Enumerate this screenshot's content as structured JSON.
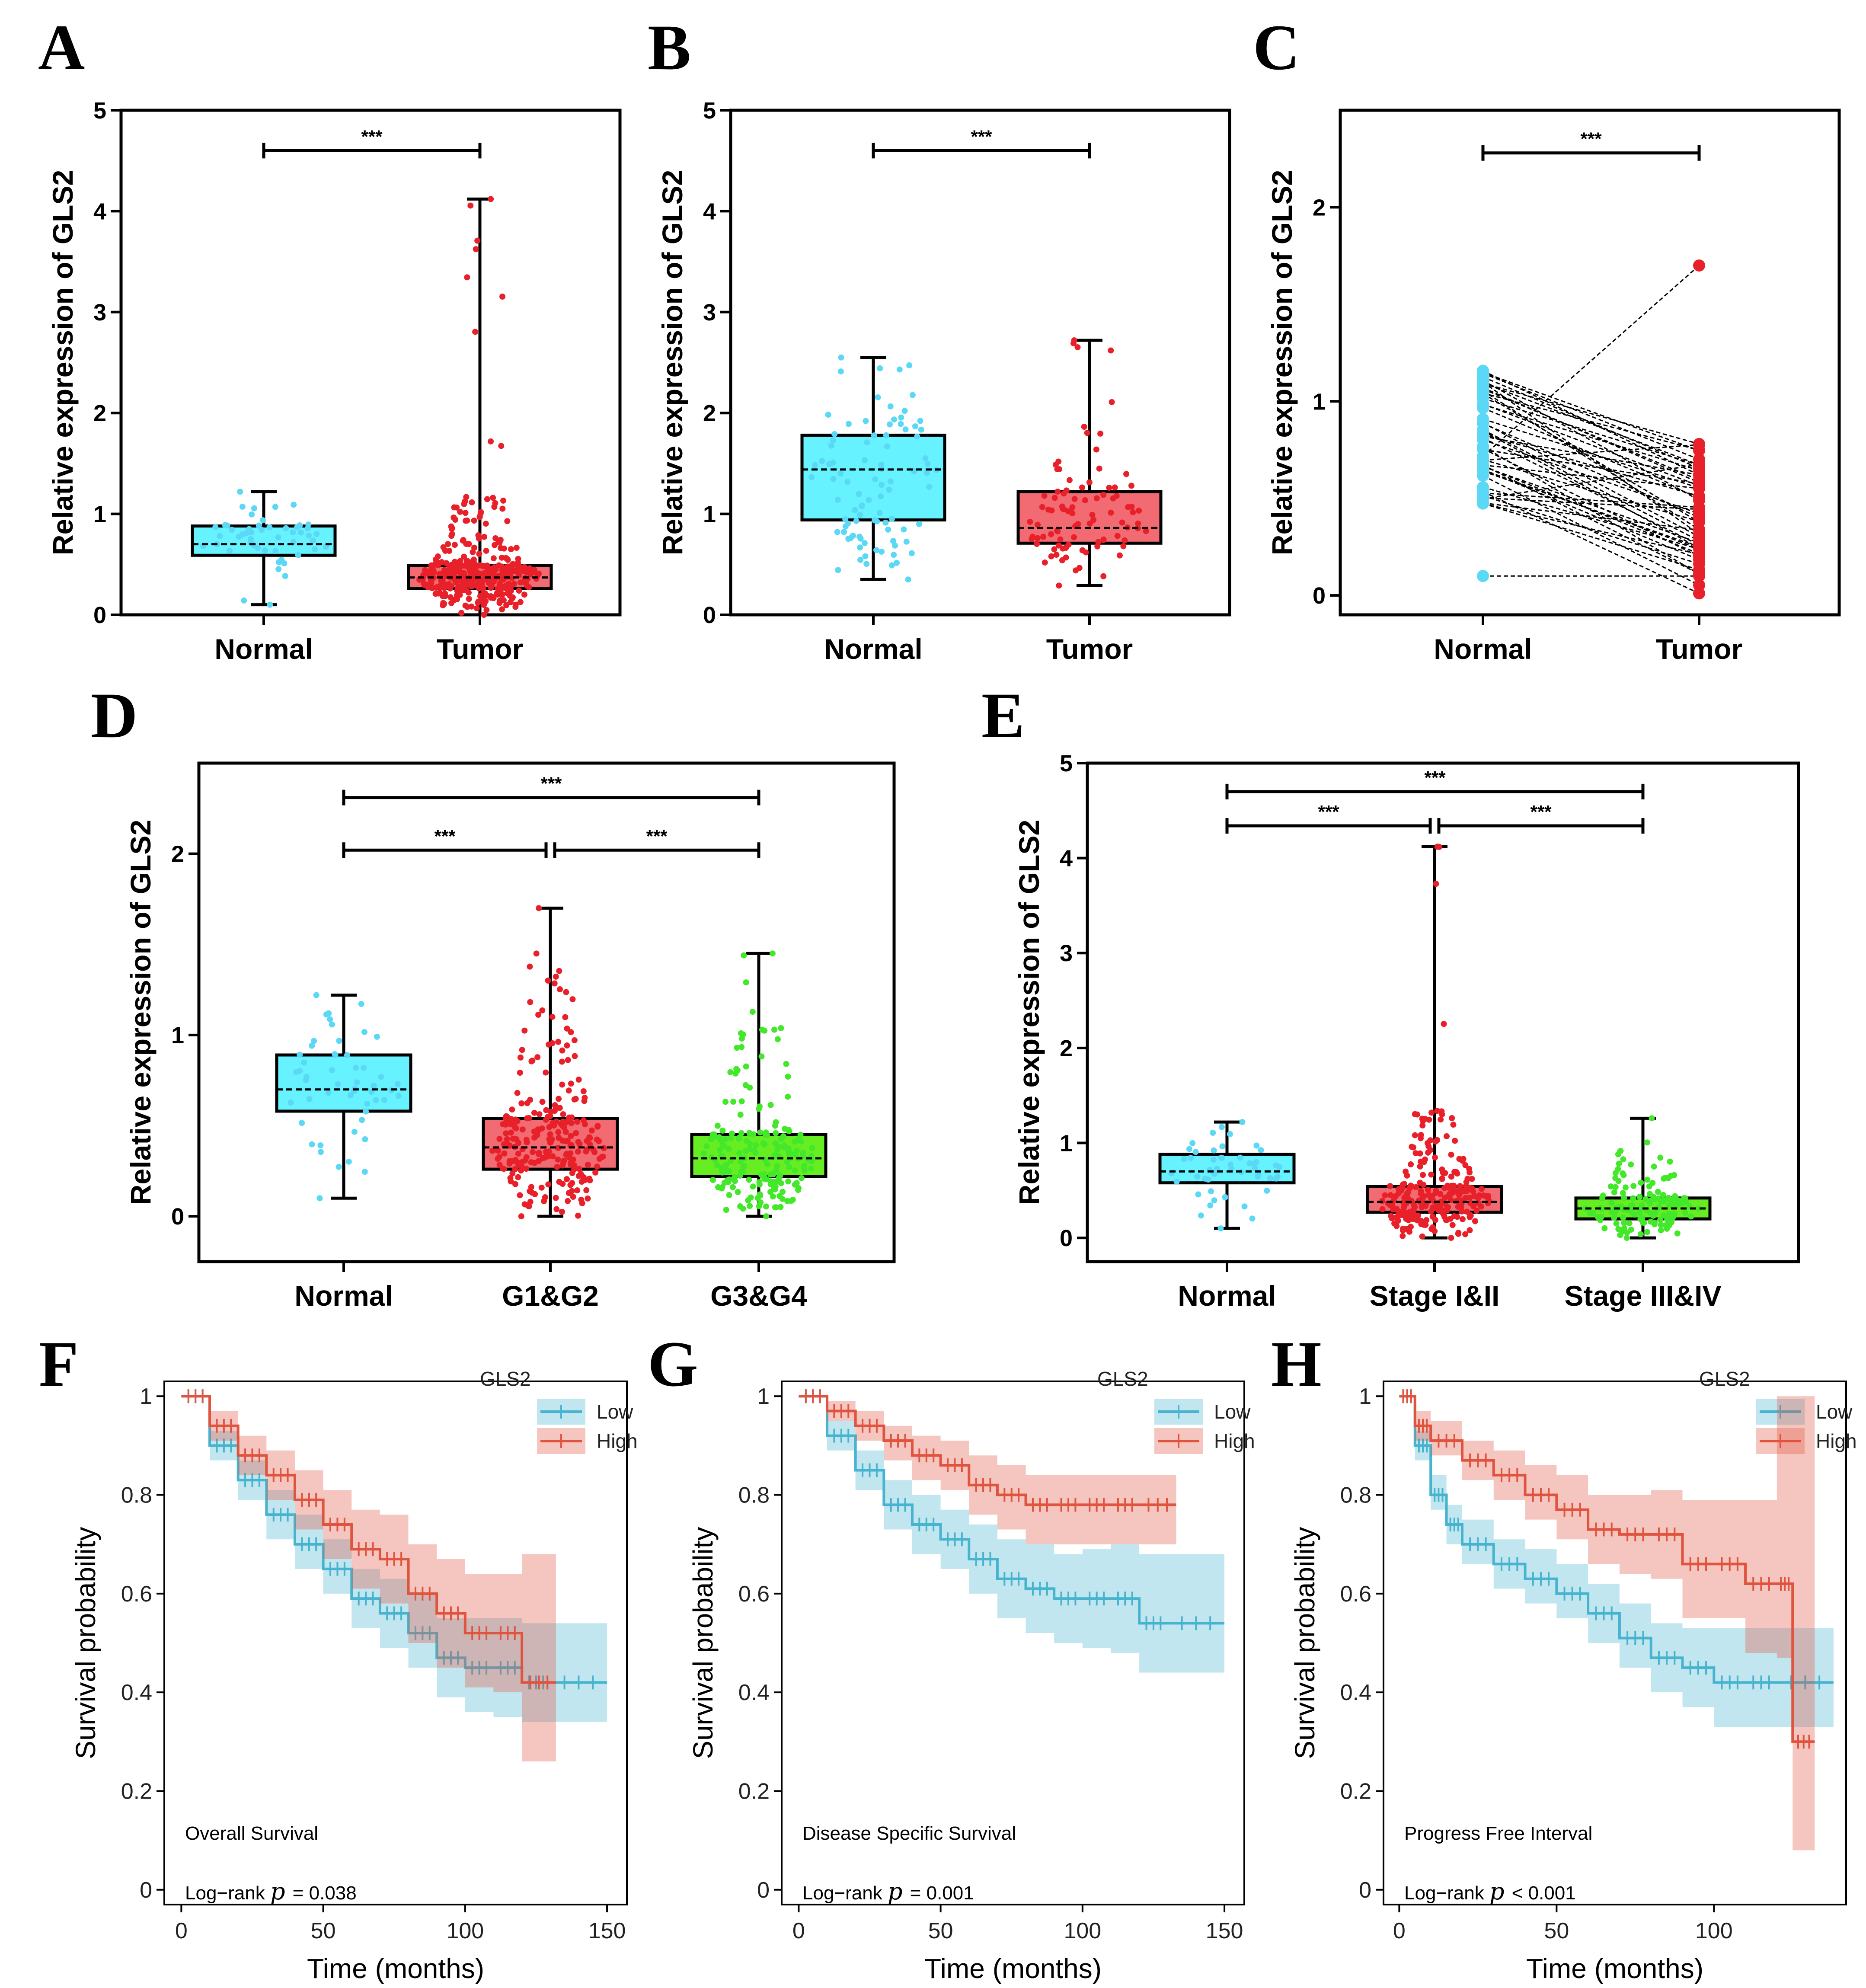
{
  "colors": {
    "normal": "#5ad8f5",
    "normal_fill": "#66f2ff",
    "tumor": "#e8202a",
    "tumor_fill": "#f26a72",
    "g34": "#44e82a",
    "g34_fill": "#66ee22",
    "km_low": "#46b4cf",
    "km_high": "#e0533e"
  },
  "chart_data": [
    {
      "panel": "A",
      "type": "box",
      "ylabel": "Relative expression of GLS2",
      "ylim": [
        0,
        5
      ],
      "yticks": [
        0,
        1,
        2,
        3,
        4,
        5
      ],
      "categories": [
        "Normal",
        "Tumor"
      ],
      "groups": [
        {
          "name": "Normal",
          "min": 0.1,
          "q1": 0.59,
          "median": 0.7,
          "q3": 0.88,
          "max": 1.22,
          "n": 50,
          "color": "normal"
        },
        {
          "name": "Tumor",
          "min": 0.0,
          "q1": 0.26,
          "median": 0.37,
          "q3": 0.49,
          "max": 4.12,
          "n": 374,
          "color": "tumor"
        }
      ],
      "comparisons": [
        {
          "from": 0,
          "to": 1,
          "label": "***",
          "y": 4.6
        }
      ]
    },
    {
      "panel": "B",
      "type": "box",
      "ylabel": "Relative expression of GLS2",
      "ylim": [
        0,
        5
      ],
      "yticks": [
        0,
        1,
        2,
        3,
        4,
        5
      ],
      "categories": [
        "Normal",
        "Tumor"
      ],
      "groups": [
        {
          "name": "Normal",
          "min": 0.35,
          "q1": 0.94,
          "median": 1.44,
          "q3": 1.78,
          "max": 2.55,
          "n": 90,
          "color": "normal"
        },
        {
          "name": "Tumor",
          "min": 0.29,
          "q1": 0.71,
          "median": 0.86,
          "q3": 1.22,
          "max": 2.72,
          "n": 90,
          "color": "tumor"
        }
      ],
      "comparisons": [
        {
          "from": 0,
          "to": 1,
          "label": "***",
          "y": 4.6
        }
      ]
    },
    {
      "panel": "C",
      "type": "paired",
      "ylabel": "Relative expression of GLS2",
      "ylim": [
        -0.1,
        2.5
      ],
      "yticks": [
        0,
        1,
        2
      ],
      "categories": [
        "Normal",
        "Tumor"
      ],
      "normal_range": [
        0.4,
        1.22
      ],
      "normal_outlier": 0.1,
      "tumor_range": [
        0.0,
        1.7
      ],
      "n_pairs": 50,
      "comparisons": [
        {
          "from": 0,
          "to": 1,
          "label": "***",
          "y": 2.28
        }
      ]
    },
    {
      "panel": "D",
      "type": "box",
      "ylabel": "Relative expression of GLS2",
      "ylim": [
        -0.25,
        2.5
      ],
      "yticks": [
        0,
        1,
        2
      ],
      "categories": [
        "Normal",
        "G1&G2",
        "G3&G4"
      ],
      "groups": [
        {
          "name": "Normal",
          "min": 0.1,
          "q1": 0.58,
          "median": 0.7,
          "q3": 0.89,
          "max": 1.22,
          "n": 50,
          "color": "normal"
        },
        {
          "name": "G1&G2",
          "min": 0.0,
          "q1": 0.26,
          "median": 0.38,
          "q3": 0.54,
          "max": 1.7,
          "n": 250,
          "color": "tumor"
        },
        {
          "name": "G3&G4",
          "min": 0.0,
          "q1": 0.22,
          "median": 0.32,
          "q3": 0.45,
          "max": 1.45,
          "n": 200,
          "color": "g34"
        }
      ],
      "comparisons": [
        {
          "from": 0,
          "to": 2,
          "label": "***",
          "y": 2.31
        },
        {
          "from": 0,
          "to": 1,
          "label": "***",
          "y": 2.02
        },
        {
          "from": 1,
          "to": 2,
          "label": "***",
          "y": 2.02
        }
      ]
    },
    {
      "panel": "E",
      "type": "box",
      "ylabel": "Relative expression of GLS2",
      "ylim": [
        -0.25,
        5
      ],
      "yticks": [
        0,
        1,
        2,
        3,
        4,
        5
      ],
      "categories": [
        "Normal",
        "Stage I&II",
        "Stage III&IV"
      ],
      "groups": [
        {
          "name": "Normal",
          "min": 0.1,
          "q1": 0.58,
          "median": 0.7,
          "q3": 0.88,
          "max": 1.22,
          "n": 50,
          "color": "normal"
        },
        {
          "name": "Stage I&II",
          "min": 0.0,
          "q1": 0.27,
          "median": 0.38,
          "q3": 0.54,
          "max": 4.12,
          "n": 260,
          "color": "tumor"
        },
        {
          "name": "Stage III&IV",
          "min": 0.0,
          "q1": 0.2,
          "median": 0.31,
          "q3": 0.42,
          "max": 1.26,
          "n": 150,
          "color": "g34"
        }
      ],
      "comparisons": [
        {
          "from": 0,
          "to": 2,
          "label": "***",
          "y": 4.7
        },
        {
          "from": 0,
          "to": 1,
          "label": "***",
          "y": 4.34
        },
        {
          "from": 1,
          "to": 2,
          "label": "***",
          "y": 4.34
        }
      ]
    },
    {
      "panel": "F",
      "type": "km",
      "title": "Overall Survival",
      "pvalue_prefix": "Log−rank",
      "pvalue_text": "= 0.038",
      "xlabel": "Time (months)",
      "ylabel": "Survival probability",
      "xlim": [
        -6,
        157
      ],
      "xticks": [
        0,
        50,
        100,
        150
      ],
      "ylim": [
        -0.03,
        1.03
      ],
      "yticks": [
        0.0,
        0.2,
        0.4,
        0.6,
        0.8,
        1.0
      ],
      "legend_title": "GLS2",
      "series": [
        {
          "name": "Low",
          "color": "km_low",
          "t": [
            0,
            10,
            20,
            30,
            40,
            50,
            60,
            70,
            80,
            90,
            100,
            110,
            120,
            130,
            150
          ],
          "s": [
            1.0,
            0.9,
            0.83,
            0.76,
            0.7,
            0.65,
            0.59,
            0.56,
            0.52,
            0.47,
            0.45,
            0.45,
            0.42,
            0.42,
            0.42
          ],
          "lo": [
            1.0,
            0.87,
            0.79,
            0.71,
            0.65,
            0.6,
            0.53,
            0.49,
            0.45,
            0.39,
            0.36,
            0.35,
            0.34,
            0.34,
            0.34
          ],
          "hi": [
            1.0,
            0.93,
            0.87,
            0.81,
            0.76,
            0.71,
            0.65,
            0.63,
            0.6,
            0.55,
            0.55,
            0.55,
            0.54,
            0.54,
            0.54
          ]
        },
        {
          "name": "High",
          "color": "km_high",
          "t": [
            0,
            10,
            20,
            30,
            40,
            50,
            60,
            70,
            80,
            90,
            100,
            110,
            120,
            132
          ],
          "s": [
            1.0,
            0.94,
            0.88,
            0.84,
            0.79,
            0.74,
            0.69,
            0.67,
            0.6,
            0.56,
            0.52,
            0.52,
            0.42,
            0.42
          ],
          "lo": [
            1.0,
            0.91,
            0.84,
            0.79,
            0.73,
            0.67,
            0.61,
            0.58,
            0.5,
            0.45,
            0.41,
            0.4,
            0.26,
            0.26
          ],
          "hi": [
            1.0,
            0.97,
            0.92,
            0.89,
            0.85,
            0.81,
            0.77,
            0.76,
            0.7,
            0.67,
            0.64,
            0.64,
            0.68,
            0.68
          ]
        }
      ]
    },
    {
      "panel": "G",
      "type": "km",
      "title": "Disease Specific Survival",
      "pvalue_prefix": "Log−rank",
      "pvalue_text": "= 0.001",
      "xlabel": "Time (months)",
      "ylabel": "Survival probability",
      "xlim": [
        -6,
        157
      ],
      "xticks": [
        0,
        50,
        100,
        150
      ],
      "ylim": [
        -0.03,
        1.03
      ],
      "yticks": [
        0.0,
        0.2,
        0.4,
        0.6,
        0.8,
        1.0
      ],
      "legend_title": "GLS2",
      "series": [
        {
          "name": "Low",
          "color": "km_low",
          "t": [
            0,
            10,
            20,
            30,
            40,
            50,
            60,
            70,
            80,
            90,
            100,
            110,
            120,
            130,
            150
          ],
          "s": [
            1.0,
            0.92,
            0.85,
            0.78,
            0.74,
            0.71,
            0.67,
            0.63,
            0.61,
            0.59,
            0.59,
            0.59,
            0.54,
            0.54,
            0.54
          ],
          "lo": [
            1.0,
            0.89,
            0.81,
            0.73,
            0.68,
            0.65,
            0.6,
            0.55,
            0.52,
            0.5,
            0.49,
            0.48,
            0.44,
            0.44,
            0.44
          ],
          "hi": [
            1.0,
            0.95,
            0.89,
            0.83,
            0.8,
            0.77,
            0.74,
            0.71,
            0.7,
            0.68,
            0.69,
            0.7,
            0.68,
            0.68,
            0.68
          ]
        },
        {
          "name": "High",
          "color": "km_high",
          "t": [
            0,
            10,
            20,
            30,
            40,
            50,
            60,
            70,
            80,
            90,
            100,
            110,
            120,
            133
          ],
          "s": [
            1.0,
            0.97,
            0.94,
            0.91,
            0.88,
            0.86,
            0.82,
            0.8,
            0.78,
            0.78,
            0.78,
            0.78,
            0.78,
            0.78
          ],
          "lo": [
            1.0,
            0.95,
            0.91,
            0.87,
            0.83,
            0.81,
            0.76,
            0.73,
            0.7,
            0.7,
            0.7,
            0.7,
            0.7,
            0.7
          ],
          "hi": [
            1.0,
            0.99,
            0.97,
            0.94,
            0.92,
            0.91,
            0.88,
            0.86,
            0.84,
            0.84,
            0.84,
            0.84,
            0.84,
            0.84
          ]
        }
      ]
    },
    {
      "panel": "H",
      "type": "km",
      "title": "Progress Free Interval",
      "pvalue_prefix": "Log−rank",
      "pvalue_text": "< 0.001",
      "xlabel": "Time (months)",
      "ylabel": "Survival probability",
      "xlim": [
        -5,
        142
      ],
      "xticks": [
        0,
        50,
        100
      ],
      "ylim": [
        -0.03,
        1.03
      ],
      "yticks": [
        0.0,
        0.2,
        0.4,
        0.6,
        0.8,
        1.0
      ],
      "legend_title": "GLS2",
      "series": [
        {
          "name": "Low",
          "color": "km_low",
          "t": [
            0,
            5,
            10,
            15,
            20,
            30,
            40,
            50,
            60,
            70,
            80,
            90,
            100,
            110,
            120,
            138
          ],
          "s": [
            1.0,
            0.9,
            0.8,
            0.74,
            0.7,
            0.66,
            0.63,
            0.6,
            0.56,
            0.51,
            0.47,
            0.45,
            0.42,
            0.42,
            0.42,
            0.42
          ],
          "lo": [
            1.0,
            0.87,
            0.77,
            0.7,
            0.66,
            0.61,
            0.58,
            0.55,
            0.5,
            0.45,
            0.4,
            0.37,
            0.33,
            0.33,
            0.33,
            0.33
          ],
          "hi": [
            1.0,
            0.93,
            0.84,
            0.78,
            0.75,
            0.71,
            0.69,
            0.66,
            0.62,
            0.58,
            0.54,
            0.53,
            0.53,
            0.53,
            0.53,
            0.53
          ]
        },
        {
          "name": "High",
          "color": "km_high",
          "t": [
            0,
            5,
            10,
            20,
            30,
            40,
            50,
            60,
            70,
            80,
            90,
            100,
            110,
            120,
            125,
            132
          ],
          "s": [
            1.0,
            0.94,
            0.91,
            0.87,
            0.84,
            0.8,
            0.77,
            0.73,
            0.72,
            0.72,
            0.66,
            0.66,
            0.62,
            0.62,
            0.3,
            0.3
          ],
          "lo": [
            1.0,
            0.91,
            0.88,
            0.83,
            0.79,
            0.75,
            0.71,
            0.66,
            0.64,
            0.63,
            0.55,
            0.55,
            0.48,
            0.47,
            0.08,
            0.08
          ],
          "hi": [
            1.0,
            0.97,
            0.95,
            0.91,
            0.89,
            0.86,
            0.84,
            0.8,
            0.8,
            0.81,
            0.79,
            0.79,
            0.79,
            1.0,
            1.0,
            1.0
          ]
        }
      ]
    }
  ]
}
